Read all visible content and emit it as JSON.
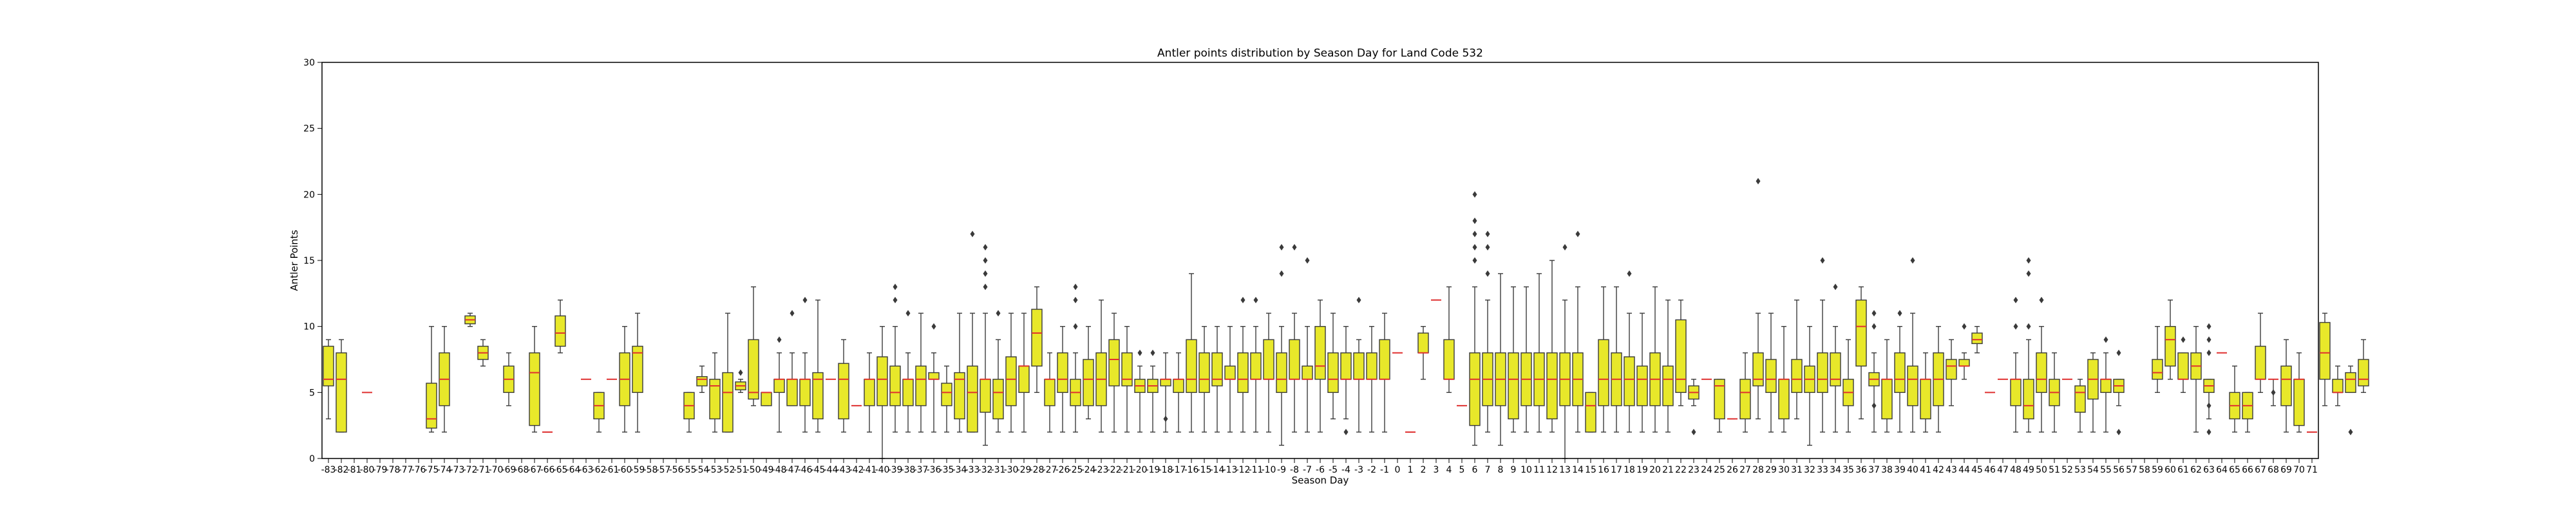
{
  "chart_data": {
    "type": "box",
    "title": "Antler points distribution by Season Day for Land Code 532",
    "xlabel": "Season Day",
    "ylabel": "Antler Points",
    "ylim": [
      0,
      30
    ],
    "yticks": [
      "0",
      "5",
      "10",
      "15",
      "20",
      "25",
      "30"
    ],
    "grid": false,
    "box_color": "#e8e82a",
    "median_color": "#e03030",
    "categories": [
      "-83",
      "-82",
      "-81",
      "-80",
      "-79",
      "-78",
      "-77",
      "-76",
      "-75",
      "-74",
      "-73",
      "-72",
      "-71",
      "-70",
      "-69",
      "-68",
      "-67",
      "-66",
      "-65",
      "-64",
      "-63",
      "-62",
      "-61",
      "-60",
      "-59",
      "-58",
      "-57",
      "-56",
      "-55",
      "-54",
      "-53",
      "-52",
      "-51",
      "-50",
      "-49",
      "-48",
      "-47",
      "-46",
      "-45",
      "-44",
      "-43",
      "-42",
      "-41",
      "-40",
      "-39",
      "-38",
      "-37",
      "-36",
      "-35",
      "-34",
      "-33",
      "-32",
      "-31",
      "-30",
      "-29",
      "-28",
      "-27",
      "-26",
      "-25",
      "-24",
      "-23",
      "-22",
      "-21",
      "-20",
      "-19",
      "-18",
      "-17",
      "-16",
      "-15",
      "-14",
      "-13",
      "-12",
      "-11",
      "-10",
      "-9",
      "-8",
      "-7",
      "-6",
      "-5",
      "-4",
      "-3",
      "-2",
      "-1",
      "0",
      "1",
      "2",
      "3",
      "4",
      "5",
      "6",
      "7",
      "8",
      "9",
      "10",
      "11",
      "12",
      "13",
      "14",
      "15",
      "16",
      "17",
      "18",
      "19",
      "20",
      "21",
      "22",
      "23",
      "24",
      "25",
      "26",
      "27",
      "28",
      "29",
      "30",
      "31",
      "32",
      "33",
      "34",
      "35",
      "36",
      "37",
      "38",
      "39",
      "40",
      "41",
      "42",
      "43",
      "44",
      "45",
      "46",
      "47",
      "48",
      "49",
      "50",
      "51",
      "52",
      "53",
      "54",
      "55",
      "56",
      "57",
      "58",
      "59",
      "60",
      "61",
      "62",
      "63",
      "64",
      "65",
      "66",
      "67",
      "68",
      "69",
      "70",
      "71"
    ],
    "boxes": [
      [
        3,
        5.5,
        6,
        8.5,
        9,
        []
      ],
      [
        2,
        2,
        6,
        8,
        9,
        []
      ],
      null,
      [
        5,
        5,
        5,
        5,
        5,
        []
      ],
      null,
      null,
      null,
      null,
      [
        2,
        2.3,
        3,
        5.7,
        10,
        []
      ],
      [
        2,
        4,
        6,
        8,
        10,
        []
      ],
      null,
      [
        10,
        10.2,
        10.5,
        10.8,
        11,
        []
      ],
      [
        7,
        7.5,
        8,
        8.5,
        9,
        []
      ],
      null,
      [
        4,
        5,
        6,
        7,
        8,
        []
      ],
      null,
      [
        2,
        2.5,
        6.5,
        8,
        10,
        []
      ],
      [
        2,
        2,
        2,
        2,
        2,
        []
      ],
      [
        8,
        8.5,
        9.5,
        10.8,
        12,
        []
      ],
      null,
      [
        6,
        6,
        6,
        6,
        6,
        []
      ],
      [
        2,
        3,
        4,
        5,
        5,
        []
      ],
      [
        6,
        6,
        6,
        6,
        6,
        []
      ],
      [
        2,
        4,
        6,
        8,
        10,
        []
      ],
      [
        2,
        5,
        8,
        8.5,
        11,
        []
      ],
      null,
      null,
      null,
      [
        2,
        3,
        4,
        5,
        5,
        []
      ],
      [
        5,
        5.5,
        6,
        6.2,
        7,
        []
      ],
      [
        2,
        3,
        5.5,
        6,
        8,
        []
      ],
      [
        2,
        2,
        5,
        6.5,
        11,
        []
      ],
      [
        5,
        5.2,
        5.5,
        5.8,
        6,
        [
          6.5
        ]
      ],
      [
        4,
        4.5,
        5,
        9,
        13,
        []
      ],
      [
        4,
        4,
        5,
        5,
        5,
        []
      ],
      [
        2,
        5,
        6,
        6,
        8,
        [
          9
        ]
      ],
      [
        4,
        4,
        6,
        6,
        8,
        [
          11
        ]
      ],
      [
        2,
        4,
        6,
        6,
        8,
        [
          12
        ]
      ],
      [
        2,
        3,
        6,
        6.5,
        12,
        []
      ],
      [
        6,
        6,
        6,
        6,
        6,
        []
      ],
      [
        2,
        3,
        6,
        7.2,
        9,
        []
      ],
      [
        4,
        4,
        4,
        4,
        4,
        []
      ],
      [
        2,
        4,
        6,
        6,
        8,
        []
      ],
      [
        0,
        4,
        6,
        7.7,
        10,
        []
      ],
      [
        2,
        4,
        5,
        7,
        10,
        [
          12,
          13
        ]
      ],
      [
        2,
        4,
        6,
        6,
        8,
        [
          11
        ]
      ],
      [
        2,
        4,
        6,
        7,
        11,
        []
      ],
      [
        2,
        6,
        6,
        6.5,
        8,
        [
          10
        ]
      ],
      [
        2,
        4,
        5,
        5.7,
        7,
        []
      ],
      [
        2,
        3,
        6,
        6.5,
        11,
        []
      ],
      [
        2,
        2,
        5,
        7,
        11,
        [
          17
        ]
      ],
      [
        1,
        3.5,
        6,
        6,
        11,
        [
          13,
          14,
          15,
          16
        ]
      ],
      [
        2,
        3,
        5,
        6,
        9,
        [
          11
        ]
      ],
      [
        2,
        4,
        6,
        7.7,
        11,
        []
      ],
      [
        2,
        5,
        7,
        7,
        11,
        []
      ],
      [
        5,
        7,
        9.5,
        11.3,
        13,
        []
      ],
      [
        2,
        4,
        6,
        6,
        8,
        []
      ],
      [
        2,
        5,
        6,
        8,
        10,
        []
      ],
      [
        2,
        4,
        5,
        6,
        8,
        [
          10,
          12,
          13
        ]
      ],
      [
        3,
        4,
        6,
        7.5,
        10,
        []
      ],
      [
        2,
        4,
        6,
        8,
        12,
        []
      ],
      [
        2,
        5.5,
        7.5,
        9,
        11,
        []
      ],
      [
        2,
        5.5,
        6,
        8,
        10,
        []
      ],
      [
        2,
        5,
        5.5,
        6,
        7,
        [
          8
        ]
      ],
      [
        2,
        5,
        5.5,
        6,
        7,
        [
          8
        ]
      ],
      [
        2,
        5.5,
        6,
        6,
        8,
        [
          3
        ]
      ],
      [
        2,
        5,
        6,
        6,
        8,
        []
      ],
      [
        2,
        5,
        6,
        9,
        14,
        []
      ],
      [
        2,
        5,
        6,
        8,
        10,
        []
      ],
      [
        2,
        5.5,
        6,
        8,
        10,
        []
      ],
      [
        2,
        6,
        6,
        7,
        10,
        []
      ],
      [
        2,
        5,
        6,
        8,
        10,
        [
          12
        ]
      ],
      [
        2,
        6,
        6,
        8,
        10,
        [
          12
        ]
      ],
      [
        2,
        6,
        6,
        9,
        11,
        []
      ],
      [
        1,
        5,
        6,
        8,
        10,
        [
          14,
          16
        ]
      ],
      [
        2,
        6,
        6,
        9,
        11,
        [
          16
        ]
      ],
      [
        2,
        6,
        6,
        7,
        10,
        [
          15
        ]
      ],
      [
        2,
        6,
        7,
        10,
        12,
        []
      ],
      [
        3,
        5,
        6,
        8,
        11,
        []
      ],
      [
        3,
        6,
        6,
        8,
        10,
        [
          2
        ]
      ],
      [
        2,
        6,
        6,
        8,
        9,
        [
          12
        ]
      ],
      [
        2,
        6,
        6,
        8,
        10,
        []
      ],
      [
        2,
        6,
        6,
        9,
        11,
        []
      ],
      [
        8,
        8,
        8,
        8,
        8,
        []
      ],
      [
        2,
        2,
        2,
        2,
        2,
        []
      ],
      [
        6,
        8,
        8,
        9.5,
        10,
        []
      ],
      [
        12,
        12,
        12,
        12,
        12,
        []
      ],
      [
        5,
        6,
        6,
        9,
        13,
        []
      ],
      [
        4,
        4,
        4,
        4,
        4,
        []
      ],
      [
        1,
        2.5,
        6,
        8,
        13,
        [
          15,
          16,
          17,
          18,
          20
        ]
      ],
      [
        2,
        4,
        6,
        8,
        12,
        [
          14,
          16,
          17
        ]
      ],
      [
        1,
        4,
        6,
        8,
        14,
        []
      ],
      [
        2,
        3,
        6,
        8,
        13,
        []
      ],
      [
        2,
        4,
        6,
        8,
        13,
        []
      ],
      [
        2,
        4,
        6,
        8,
        14,
        []
      ],
      [
        2,
        3,
        6,
        8,
        15,
        []
      ],
      [
        0,
        4,
        6,
        8,
        12,
        [
          16
        ]
      ],
      [
        2,
        4,
        6,
        8,
        13,
        [
          17
        ]
      ],
      [
        2,
        2,
        4,
        5,
        5,
        []
      ],
      [
        2,
        4,
        6,
        9,
        13,
        []
      ],
      [
        2,
        4,
        6,
        8,
        13,
        []
      ],
      [
        2,
        4,
        6,
        7.7,
        11,
        [
          14
        ]
      ],
      [
        2,
        4,
        6,
        7,
        11,
        []
      ],
      [
        2,
        4,
        6,
        8,
        13,
        []
      ],
      [
        2,
        4,
        6,
        7,
        12,
        []
      ],
      [
        4,
        5,
        6,
        10.5,
        12,
        []
      ],
      [
        4,
        4.5,
        5,
        5.5,
        6,
        [
          2
        ]
      ],
      [
        6,
        6,
        6,
        6,
        6,
        []
      ],
      [
        2,
        3,
        5.5,
        6,
        6,
        []
      ],
      [
        3,
        3,
        3,
        3,
        3,
        []
      ],
      [
        2,
        3,
        5,
        6,
        8,
        []
      ],
      [
        3,
        5.5,
        6,
        8,
        11,
        [
          21
        ]
      ],
      [
        2,
        5,
        6,
        7.5,
        11,
        []
      ],
      [
        2,
        3,
        6,
        6,
        10,
        []
      ],
      [
        3,
        5,
        6,
        7.5,
        12,
        []
      ],
      [
        1,
        5,
        6,
        7,
        10,
        []
      ],
      [
        2,
        5,
        6,
        8,
        12,
        [
          15
        ]
      ],
      [
        2,
        5.5,
        6,
        8,
        10,
        [
          13
        ]
      ],
      [
        2,
        4,
        5,
        6,
        9,
        []
      ],
      [
        3,
        7,
        10,
        12,
        13,
        []
      ],
      [
        2,
        5.5,
        6,
        6.5,
        8,
        [
          4,
          10,
          11
        ]
      ],
      [
        2,
        3,
        6,
        6,
        9,
        []
      ],
      [
        2,
        5,
        6,
        8,
        10,
        [
          11
        ]
      ],
      [
        2,
        4,
        6,
        7,
        11,
        [
          15
        ]
      ],
      [
        2,
        3,
        6,
        6,
        8,
        []
      ],
      [
        2,
        4,
        6,
        8,
        10,
        []
      ],
      [
        4,
        6,
        7,
        7.5,
        9,
        []
      ],
      [
        6,
        7,
        7,
        7.5,
        8,
        [
          10
        ]
      ],
      [
        8,
        8.7,
        9,
        9.5,
        10,
        []
      ],
      [
        5,
        5,
        5,
        5,
        5,
        []
      ],
      [
        6,
        6,
        6,
        6,
        6,
        []
      ],
      [
        2,
        4,
        6,
        6,
        8,
        [
          10,
          12
        ]
      ],
      [
        2,
        3,
        4,
        6,
        9,
        [
          10,
          14,
          15
        ]
      ],
      [
        2,
        5,
        6,
        8,
        10,
        [
          12
        ]
      ],
      [
        2,
        4,
        5,
        6,
        8,
        []
      ],
      [
        6,
        6,
        6,
        6,
        6,
        []
      ],
      [
        2,
        3.5,
        5,
        5.5,
        6,
        []
      ],
      [
        2,
        4.5,
        6,
        7.5,
        8,
        []
      ],
      [
        2,
        5,
        6,
        6,
        8,
        [
          9
        ]
      ],
      [
        4,
        5,
        5.5,
        6,
        6,
        [
          2,
          8
        ]
      ],
      null,
      null,
      [
        5,
        6,
        6.5,
        7.5,
        10,
        []
      ],
      [
        6,
        7,
        9,
        10,
        12,
        []
      ],
      [
        5,
        6,
        6,
        8,
        8,
        [
          9
        ]
      ],
      [
        2,
        6,
        7,
        8,
        10,
        []
      ],
      [
        3,
        5,
        5.5,
        6,
        6,
        [
          2,
          4,
          8,
          9,
          10
        ]
      ],
      [
        8,
        8,
        8,
        8,
        8,
        []
      ],
      [
        2,
        3,
        4,
        5,
        7,
        []
      ],
      [
        2,
        3,
        4,
        5,
        5,
        []
      ],
      [
        5,
        6,
        6,
        8.5,
        11,
        []
      ],
      [
        4,
        6,
        6,
        6,
        6,
        [
          5
        ]
      ],
      [
        2,
        4,
        6,
        7,
        9,
        []
      ],
      [
        2,
        2.5,
        6,
        6,
        8,
        []
      ],
      [
        2,
        2,
        2,
        2,
        2,
        []
      ],
      [
        4,
        6,
        8,
        10.3,
        11,
        []
      ],
      [
        4,
        5,
        5,
        6,
        7,
        []
      ],
      [
        5,
        5,
        6,
        6.5,
        7,
        [
          2
        ]
      ],
      [
        5,
        5.5,
        6,
        7.5,
        9,
        []
      ]
    ]
  }
}
